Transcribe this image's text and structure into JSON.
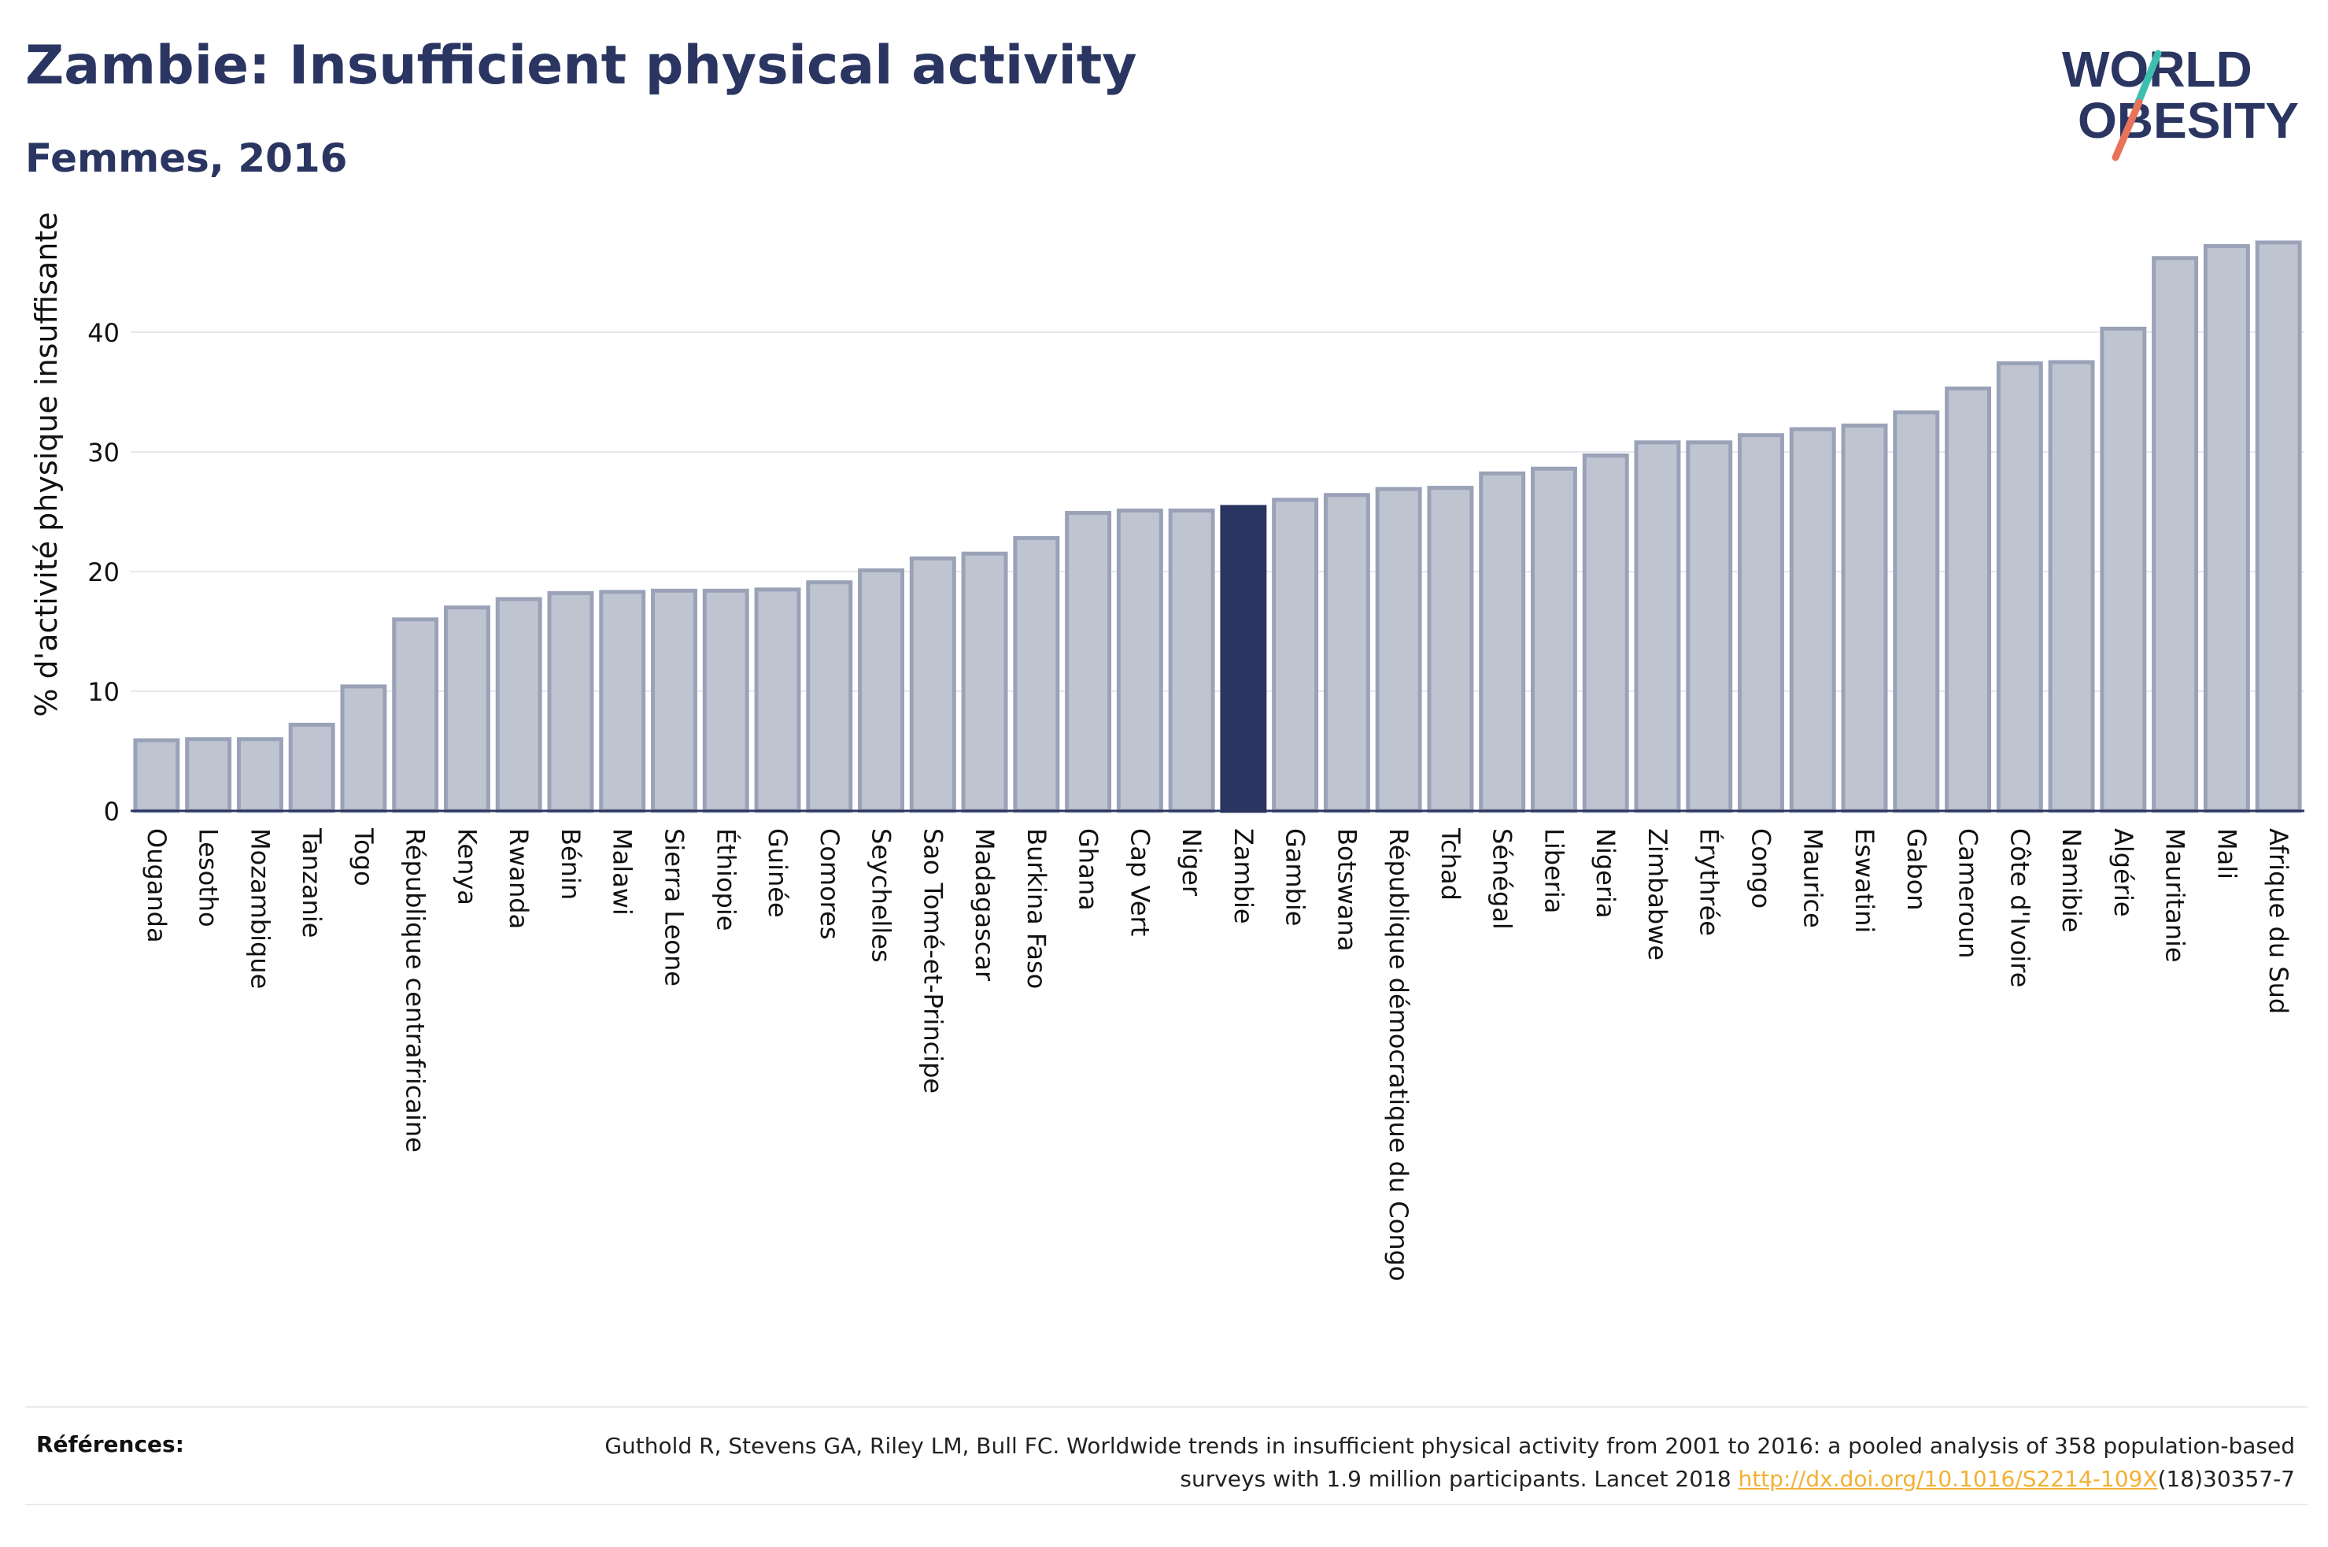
{
  "header": {
    "title": "Zambie: Insufficient physical activity",
    "subtitle": "Femmes, 2016"
  },
  "logo": {
    "line1": "WORLD",
    "line2": "OBESITY"
  },
  "chart_data": {
    "type": "bar",
    "ylabel": "% d'activité physique insuffisante",
    "ylim": [
      0,
      50
    ],
    "yticks": [
      0,
      10,
      20,
      30,
      40
    ],
    "grid": true,
    "highlight": "Zambie",
    "colors": {
      "bar": "#bfc4d1",
      "bar_border": "#9aa2b8",
      "highlight": "#2a3561",
      "axis": "#2a3561",
      "grid": "#e8e8ee"
    },
    "categories": [
      "Ouganda",
      "Lesotho",
      "Mozambique",
      "Tanzanie",
      "Togo",
      "République centrafricaine",
      "Kenya",
      "Rwanda",
      "Bénin",
      "Malawi",
      "Sierra Leone",
      "Éthiopie",
      "Guinée",
      "Comores",
      "Seychelles",
      "Sao Tomé-et-Principe",
      "Madagascar",
      "Burkina Faso",
      "Ghana",
      "Cap Vert",
      "Niger",
      "Zambie",
      "Gambie",
      "Botswana",
      "République démocratique du Congo",
      "Tchad",
      "Sénégal",
      "Liberia",
      "Nigeria",
      "Zimbabwe",
      "Érythrée",
      "Congo",
      "Maurice",
      "Eswatini",
      "Gabon",
      "Cameroun",
      "Côte d'Ivoire",
      "Namibie",
      "Algérie",
      "Mauritanie",
      "Mali",
      "Afrique du Sud"
    ],
    "values": [
      5.9,
      6.0,
      6.0,
      7.2,
      10.4,
      16.0,
      17.0,
      17.7,
      18.2,
      18.3,
      18.4,
      18.4,
      18.5,
      19.1,
      20.1,
      21.1,
      21.5,
      22.8,
      24.9,
      25.1,
      25.1,
      25.4,
      26.0,
      26.4,
      26.9,
      27.0,
      28.2,
      28.6,
      29.7,
      30.8,
      30.8,
      31.4,
      31.9,
      32.2,
      33.3,
      35.3,
      37.4,
      37.5,
      40.3,
      46.2,
      47.2,
      47.5
    ]
  },
  "references": {
    "label": "Références:",
    "text": "Guthold R, Stevens GA, Riley LM, Bull FC. Worldwide trends in insufficient physical activity from 2001 to 2016: a pooled analysis of 358 population-based surveys with 1.9 million participants. Lancet 2018",
    "link": "http://dx.doi.org/10.1016/S2214-109X",
    "suffix": "(18)30357-7"
  }
}
